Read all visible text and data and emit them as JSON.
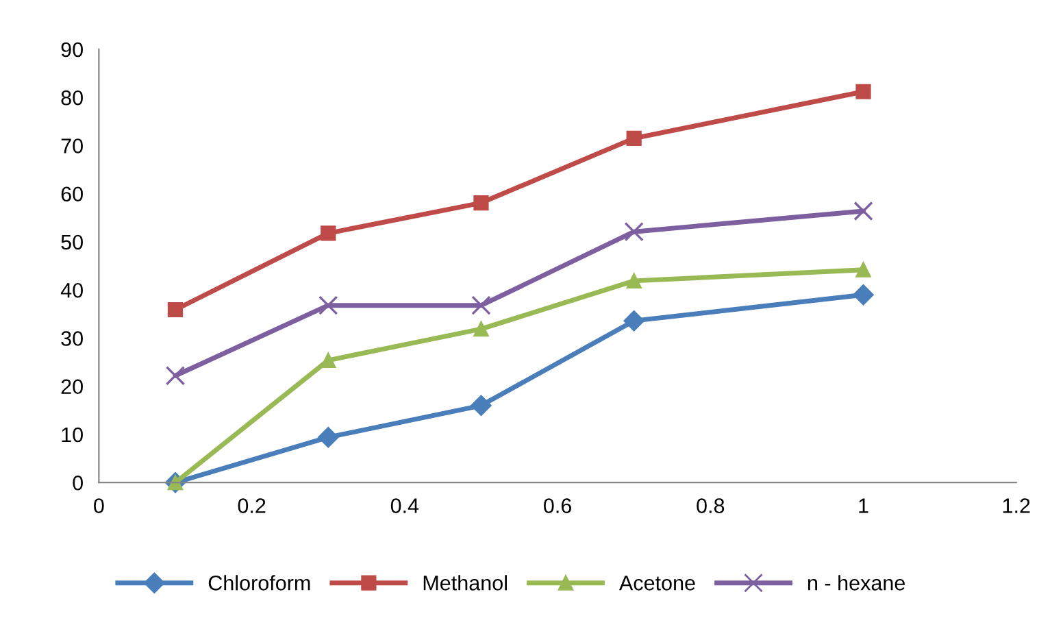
{
  "chart_data": {
    "type": "line",
    "x": [
      0.1,
      0.3,
      0.5,
      0.7,
      1
    ],
    "series": [
      {
        "name": "Chloroform",
        "color": "#4a7ebb",
        "marker": "diamond",
        "values": [
          0,
          9.4,
          16,
          33.6,
          39
        ]
      },
      {
        "name": "Methanol",
        "color": "#be4b48",
        "marker": "square",
        "values": [
          35.9,
          51.8,
          58.1,
          71.5,
          81.2
        ]
      },
      {
        "name": "Acetone",
        "color": "#98b954",
        "marker": "triangle",
        "values": [
          0,
          25.4,
          31.9,
          41.9,
          44.2
        ]
      },
      {
        "name": "n - hexane",
        "color": "#7d5fa0",
        "marker": "cross",
        "values": [
          22.2,
          36.8,
          36.8,
          52.1,
          56.4
        ]
      }
    ],
    "xlim": [
      0,
      1.2
    ],
    "xticks": [
      0,
      0.2,
      0.4,
      0.6,
      0.8,
      1,
      1.2
    ],
    "ylim": [
      0,
      90
    ],
    "yticks": [
      0,
      10,
      20,
      30,
      40,
      50,
      60,
      70,
      80,
      90
    ],
    "grid": false,
    "legend": "bottom",
    "line_style": "solid"
  }
}
